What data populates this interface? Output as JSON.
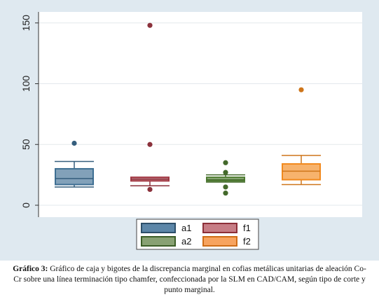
{
  "chart_data": {
    "type": "box",
    "title": "",
    "xlabel": "",
    "ylabel": "",
    "ylim": [
      -5,
      158
    ],
    "yticks": [
      0,
      50,
      100,
      150
    ],
    "grid": true,
    "legend_placement": "bottom",
    "background": "#dfe9f0",
    "series": [
      {
        "name": "a1",
        "color": "#3e6f93",
        "whisker_low": 15,
        "q1": 17,
        "median": 22,
        "q3": 30,
        "whisker_high": 36,
        "outliers": [
          51
        ]
      },
      {
        "name": "f1",
        "color": "#a33a45",
        "whisker_low": 16,
        "q1": 20,
        "median": 21.5,
        "q3": 23,
        "whisker_high": 23,
        "outliers": [
          13,
          50,
          148
        ]
      },
      {
        "name": "a2",
        "color": "#4f7c32",
        "whisker_low": 19,
        "q1": 20,
        "median": 21,
        "q3": 23,
        "whisker_high": 25,
        "outliers": [
          10,
          15,
          27,
          35
        ]
      },
      {
        "name": "f2",
        "color": "#f28a1e",
        "whisker_low": 17,
        "q1": 21,
        "median": 28,
        "q3": 34,
        "whisker_high": 41,
        "outliers": [
          95
        ]
      }
    ],
    "legend": [
      {
        "label": "a1",
        "fill": "#5c86a8",
        "border": "#2d4f6a"
      },
      {
        "label": "f1",
        "fill": "#c77d85",
        "border": "#8c2f38"
      },
      {
        "label": "a2",
        "fill": "#88a173",
        "border": "#3c5e27"
      },
      {
        "label": "f2",
        "fill": "#f7a35e",
        "border": "#cf6d16"
      }
    ]
  },
  "caption": {
    "label": "Gráfico 3:",
    "text": " Gráfico de caja y bigotes de la discrepancia marginal en cofias metálicas unitarias de aleación Co-Cr sobre una línea terminación tipo chamfer, confeccionada por la SLM en CAD/CAM, según tipo de corte y punto marginal."
  }
}
